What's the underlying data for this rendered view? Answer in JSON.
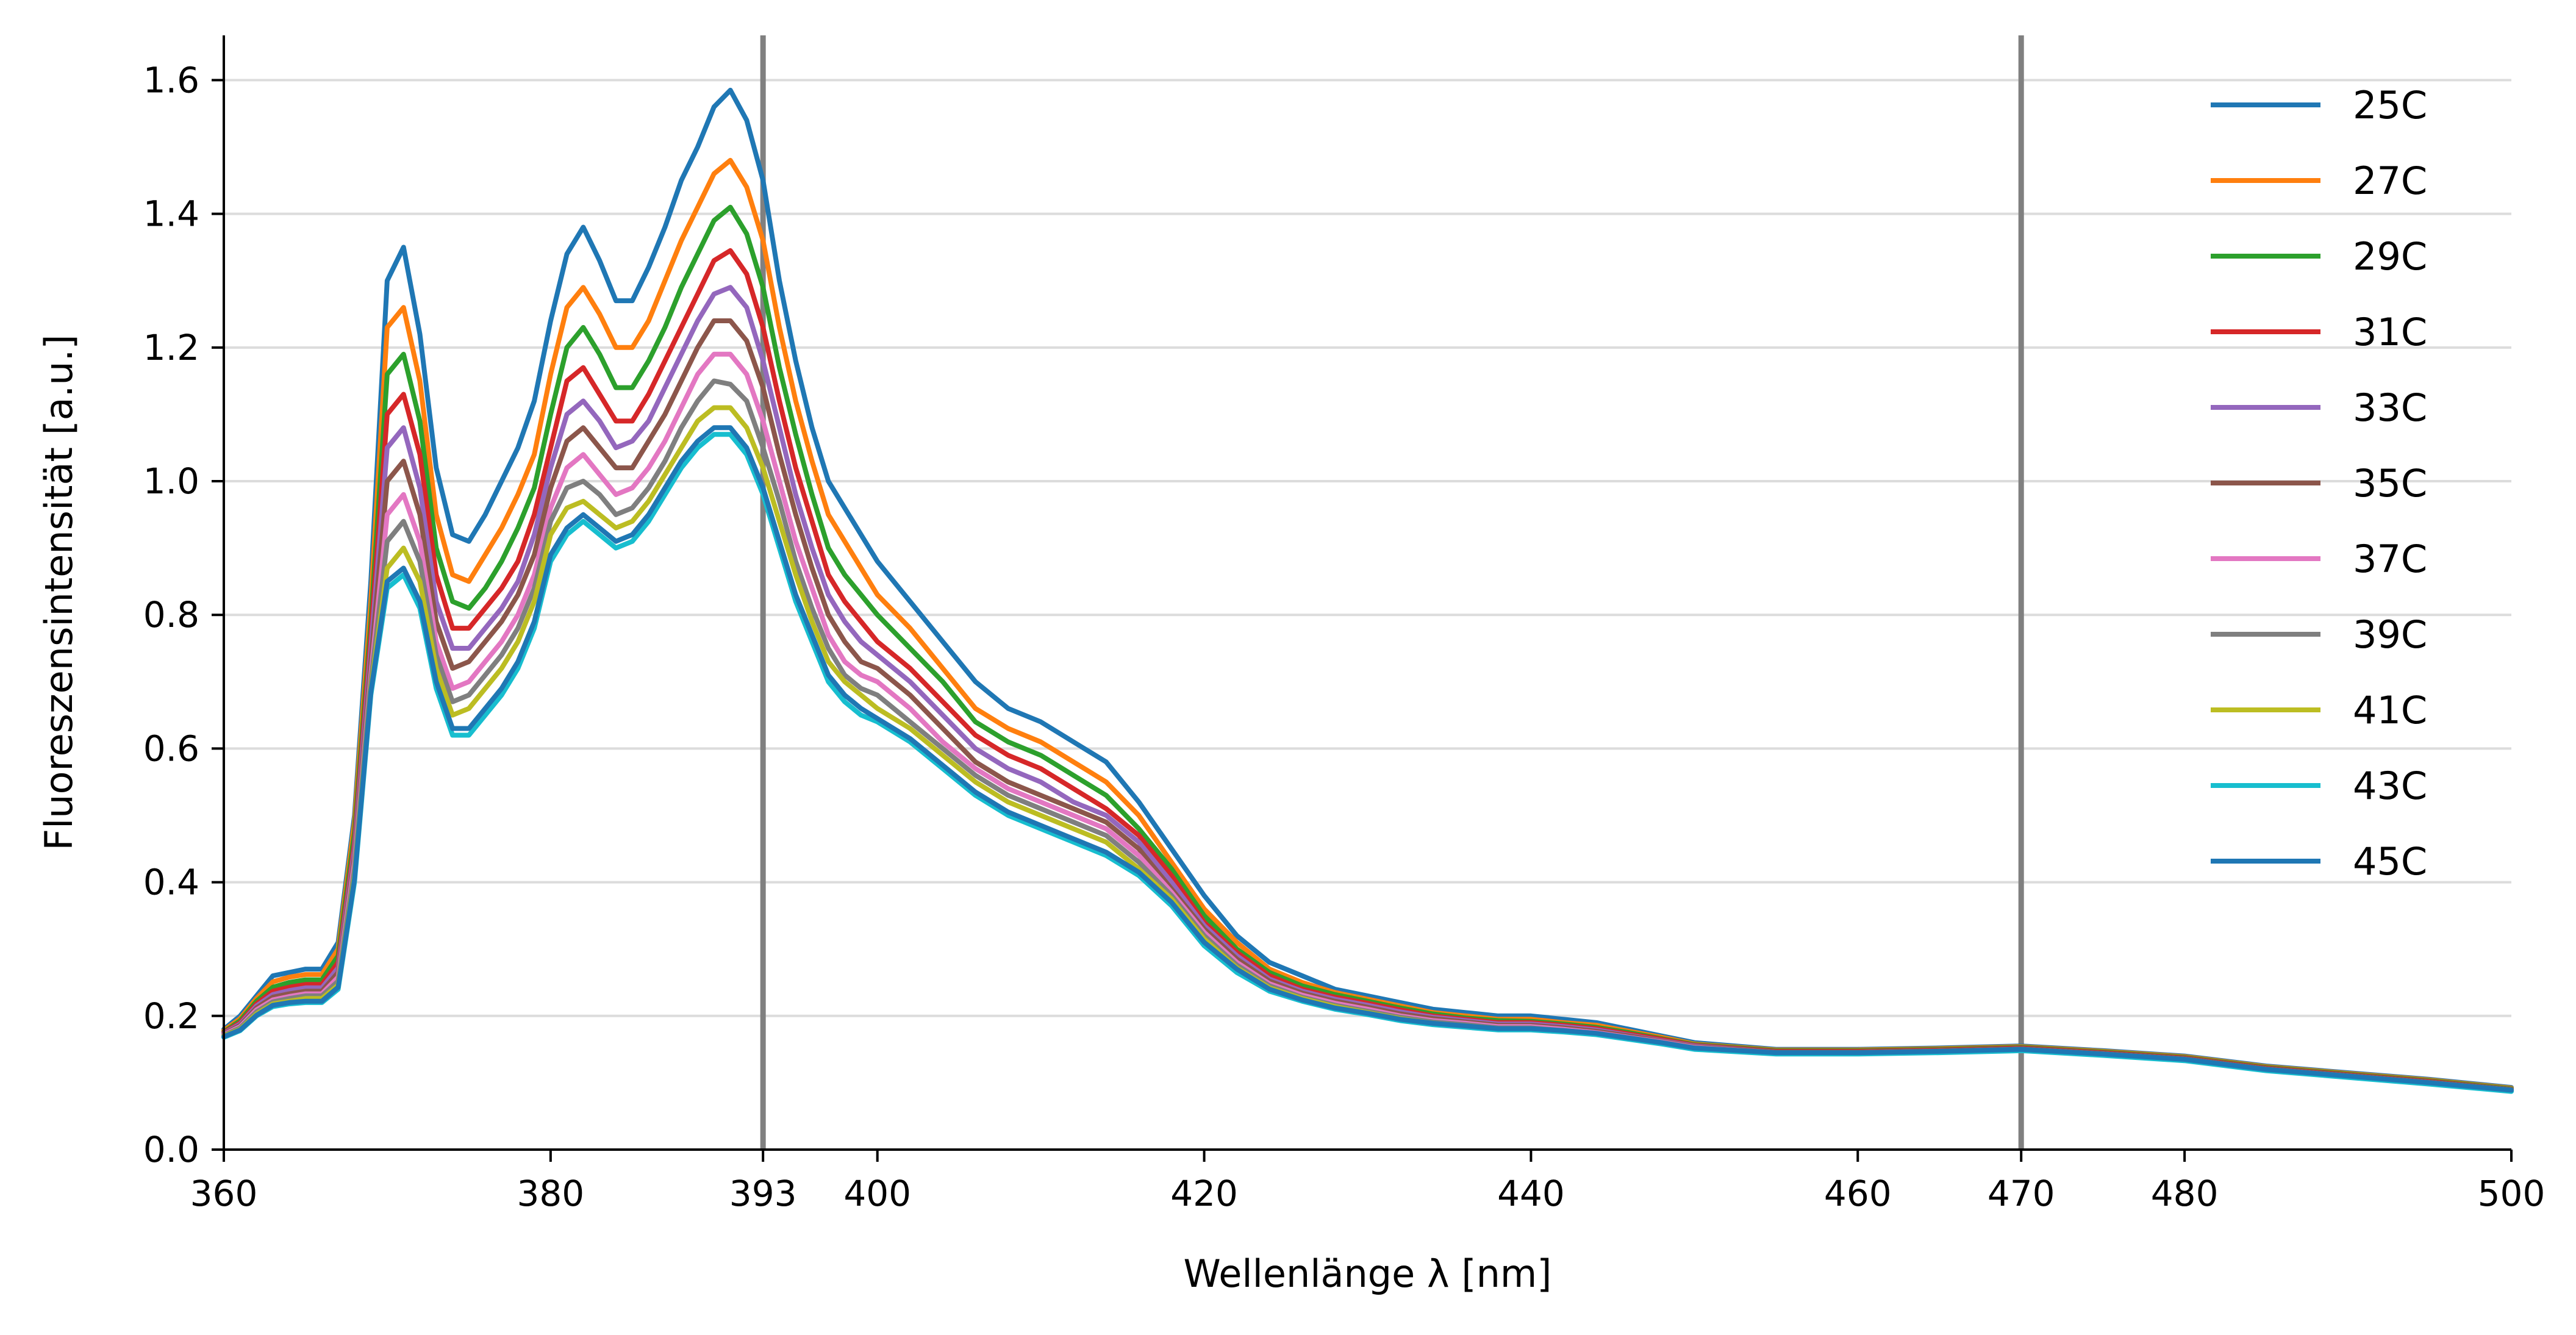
{
  "chart_data": {
    "type": "line",
    "xlabel": "Wellenlänge λ [nm]",
    "ylabel": "Fluoreszensintensität [a.u.]",
    "xlim": [
      360,
      500
    ],
    "ylim": [
      0.0,
      1.667
    ],
    "xticks": [
      360,
      380,
      393,
      400,
      420,
      440,
      460,
      470,
      480,
      500
    ],
    "yticks": [
      0.0,
      0.2,
      0.4,
      0.6,
      0.8,
      1.0,
      1.2,
      1.4,
      1.6
    ],
    "xtick_labels": [
      "360",
      "380",
      "393",
      "400",
      "420",
      "440",
      "460",
      "470",
      "480",
      "500"
    ],
    "ytick_labels": [
      "0.0",
      "0.2",
      "0.4",
      "0.6",
      "0.8",
      "1.0",
      "1.2",
      "1.4",
      "1.6"
    ],
    "grid": "horizontal",
    "legend_position": "top-right",
    "vlines": [
      393,
      470
    ],
    "vline_color": "#808080",
    "x": [
      360,
      361,
      362,
      363,
      364,
      365,
      366,
      367,
      368,
      369,
      370,
      371,
      372,
      373,
      374,
      375,
      376,
      377,
      378,
      379,
      380,
      381,
      382,
      383,
      384,
      385,
      386,
      387,
      388,
      389,
      390,
      391,
      392,
      393,
      394,
      395,
      396,
      397,
      398,
      399,
      400,
      402,
      404,
      406,
      408,
      410,
      412,
      414,
      416,
      418,
      420,
      422,
      424,
      426,
      428,
      430,
      432,
      434,
      436,
      438,
      440,
      442,
      444,
      446,
      448,
      450,
      455,
      460,
      465,
      470,
      475,
      480,
      485,
      490,
      495,
      500
    ],
    "series": [
      {
        "name": "25C",
        "color": "#1f77b4",
        "values": [
          0.18,
          0.2,
          0.23,
          0.26,
          0.265,
          0.27,
          0.27,
          0.31,
          0.5,
          0.85,
          1.3,
          1.35,
          1.22,
          1.02,
          0.92,
          0.91,
          0.95,
          1.0,
          1.05,
          1.12,
          1.24,
          1.34,
          1.38,
          1.33,
          1.27,
          1.27,
          1.32,
          1.38,
          1.45,
          1.5,
          1.56,
          1.585,
          1.54,
          1.45,
          1.3,
          1.18,
          1.08,
          1.0,
          0.96,
          0.92,
          0.88,
          0.82,
          0.76,
          0.7,
          0.66,
          0.64,
          0.61,
          0.58,
          0.52,
          0.45,
          0.38,
          0.32,
          0.28,
          0.26,
          0.24,
          0.23,
          0.22,
          0.21,
          0.205,
          0.2,
          0.2,
          0.195,
          0.19,
          0.18,
          0.17,
          0.16,
          0.15,
          0.15,
          0.152,
          0.155,
          0.148,
          0.14,
          0.125,
          0.115,
          0.105,
          0.093
        ]
      },
      {
        "name": "27C",
        "color": "#ff7f0e",
        "values": [
          0.178,
          0.196,
          0.226,
          0.251,
          0.258,
          0.262,
          0.262,
          0.3,
          0.49,
          0.82,
          1.23,
          1.26,
          1.15,
          0.95,
          0.86,
          0.85,
          0.89,
          0.93,
          0.98,
          1.04,
          1.16,
          1.26,
          1.29,
          1.25,
          1.2,
          1.2,
          1.24,
          1.3,
          1.36,
          1.41,
          1.46,
          1.48,
          1.44,
          1.36,
          1.23,
          1.12,
          1.03,
          0.95,
          0.91,
          0.87,
          0.83,
          0.78,
          0.72,
          0.66,
          0.63,
          0.61,
          0.58,
          0.55,
          0.5,
          0.43,
          0.36,
          0.31,
          0.27,
          0.25,
          0.235,
          0.225,
          0.215,
          0.205,
          0.2,
          0.195,
          0.195,
          0.19,
          0.186,
          0.177,
          0.168,
          0.158,
          0.149,
          0.149,
          0.151,
          0.154,
          0.147,
          0.139,
          0.124,
          0.114,
          0.104,
          0.092
        ]
      },
      {
        "name": "29C",
        "color": "#2ca02c",
        "values": [
          0.176,
          0.193,
          0.222,
          0.243,
          0.25,
          0.254,
          0.254,
          0.29,
          0.475,
          0.79,
          1.16,
          1.19,
          1.09,
          0.9,
          0.82,
          0.81,
          0.84,
          0.88,
          0.93,
          0.99,
          1.1,
          1.2,
          1.23,
          1.19,
          1.14,
          1.14,
          1.18,
          1.23,
          1.29,
          1.34,
          1.39,
          1.41,
          1.37,
          1.29,
          1.17,
          1.07,
          0.98,
          0.9,
          0.86,
          0.83,
          0.8,
          0.75,
          0.7,
          0.64,
          0.61,
          0.59,
          0.56,
          0.53,
          0.48,
          0.42,
          0.35,
          0.3,
          0.265,
          0.245,
          0.232,
          0.222,
          0.212,
          0.203,
          0.197,
          0.193,
          0.192,
          0.188,
          0.183,
          0.175,
          0.166,
          0.157,
          0.148,
          0.148,
          0.15,
          0.153,
          0.146,
          0.138,
          0.123,
          0.113,
          0.103,
          0.091
        ]
      },
      {
        "name": "31C",
        "color": "#d62728",
        "values": [
          0.175,
          0.19,
          0.218,
          0.237,
          0.243,
          0.247,
          0.247,
          0.28,
          0.46,
          0.77,
          1.1,
          1.13,
          1.04,
          0.86,
          0.78,
          0.78,
          0.81,
          0.84,
          0.88,
          0.95,
          1.05,
          1.15,
          1.17,
          1.13,
          1.09,
          1.09,
          1.13,
          1.18,
          1.23,
          1.28,
          1.33,
          1.345,
          1.31,
          1.23,
          1.12,
          1.02,
          0.94,
          0.86,
          0.82,
          0.79,
          0.76,
          0.72,
          0.67,
          0.62,
          0.59,
          0.57,
          0.54,
          0.51,
          0.47,
          0.41,
          0.34,
          0.295,
          0.26,
          0.24,
          0.228,
          0.219,
          0.209,
          0.2,
          0.195,
          0.19,
          0.19,
          0.186,
          0.181,
          0.173,
          0.165,
          0.156,
          0.147,
          0.147,
          0.149,
          0.152,
          0.145,
          0.137,
          0.122,
          0.112,
          0.102,
          0.09
        ]
      },
      {
        "name": "33C",
        "color": "#9467bd",
        "values": [
          0.174,
          0.188,
          0.215,
          0.232,
          0.238,
          0.242,
          0.242,
          0.272,
          0.45,
          0.75,
          1.05,
          1.08,
          0.99,
          0.82,
          0.75,
          0.75,
          0.78,
          0.81,
          0.85,
          0.92,
          1.02,
          1.1,
          1.12,
          1.09,
          1.05,
          1.06,
          1.09,
          1.14,
          1.19,
          1.24,
          1.28,
          1.29,
          1.26,
          1.18,
          1.08,
          0.98,
          0.9,
          0.83,
          0.79,
          0.76,
          0.74,
          0.7,
          0.65,
          0.6,
          0.57,
          0.55,
          0.52,
          0.5,
          0.46,
          0.4,
          0.335,
          0.29,
          0.255,
          0.237,
          0.225,
          0.216,
          0.206,
          0.198,
          0.193,
          0.188,
          0.188,
          0.184,
          0.179,
          0.171,
          0.163,
          0.155,
          0.146,
          0.146,
          0.148,
          0.151,
          0.144,
          0.136,
          0.121,
          0.111,
          0.101,
          0.09
        ]
      },
      {
        "name": "35C",
        "color": "#8c564b",
        "values": [
          0.173,
          0.186,
          0.212,
          0.228,
          0.233,
          0.237,
          0.237,
          0.265,
          0.44,
          0.73,
          1.0,
          1.03,
          0.95,
          0.79,
          0.72,
          0.73,
          0.76,
          0.79,
          0.83,
          0.89,
          0.99,
          1.06,
          1.08,
          1.05,
          1.02,
          1.02,
          1.06,
          1.1,
          1.15,
          1.2,
          1.24,
          1.24,
          1.21,
          1.14,
          1.04,
          0.95,
          0.87,
          0.8,
          0.76,
          0.73,
          0.72,
          0.68,
          0.63,
          0.58,
          0.55,
          0.53,
          0.51,
          0.49,
          0.45,
          0.39,
          0.33,
          0.285,
          0.252,
          0.234,
          0.222,
          0.213,
          0.203,
          0.196,
          0.191,
          0.186,
          0.186,
          0.182,
          0.177,
          0.17,
          0.162,
          0.154,
          0.146,
          0.146,
          0.148,
          0.151,
          0.144,
          0.136,
          0.121,
          0.111,
          0.101,
          0.09
        ]
      },
      {
        "name": "37C",
        "color": "#e377c2",
        "values": [
          0.172,
          0.184,
          0.209,
          0.224,
          0.229,
          0.233,
          0.233,
          0.258,
          0.43,
          0.71,
          0.95,
          0.98,
          0.91,
          0.76,
          0.69,
          0.7,
          0.73,
          0.76,
          0.8,
          0.86,
          0.96,
          1.02,
          1.04,
          1.01,
          0.98,
          0.99,
          1.02,
          1.06,
          1.11,
          1.16,
          1.19,
          1.19,
          1.16,
          1.09,
          1.0,
          0.91,
          0.84,
          0.77,
          0.73,
          0.71,
          0.7,
          0.66,
          0.61,
          0.57,
          0.54,
          0.52,
          0.5,
          0.48,
          0.44,
          0.385,
          0.325,
          0.28,
          0.248,
          0.231,
          0.219,
          0.21,
          0.2,
          0.193,
          0.189,
          0.184,
          0.184,
          0.18,
          0.175,
          0.168,
          0.161,
          0.153,
          0.145,
          0.145,
          0.147,
          0.15,
          0.143,
          0.135,
          0.12,
          0.11,
          0.1,
          0.089
        ]
      },
      {
        "name": "39C",
        "color": "#7f7f7f",
        "values": [
          0.171,
          0.182,
          0.206,
          0.221,
          0.226,
          0.23,
          0.23,
          0.252,
          0.42,
          0.7,
          0.91,
          0.94,
          0.88,
          0.74,
          0.67,
          0.68,
          0.71,
          0.74,
          0.78,
          0.84,
          0.94,
          0.99,
          1.0,
          0.98,
          0.95,
          0.96,
          0.99,
          1.03,
          1.08,
          1.12,
          1.15,
          1.145,
          1.12,
          1.05,
          0.97,
          0.88,
          0.81,
          0.75,
          0.71,
          0.69,
          0.68,
          0.64,
          0.6,
          0.56,
          0.53,
          0.51,
          0.49,
          0.47,
          0.43,
          0.38,
          0.32,
          0.276,
          0.245,
          0.228,
          0.216,
          0.207,
          0.198,
          0.191,
          0.187,
          0.182,
          0.182,
          0.178,
          0.174,
          0.167,
          0.16,
          0.152,
          0.145,
          0.145,
          0.147,
          0.15,
          0.143,
          0.135,
          0.12,
          0.11,
          0.1,
          0.089
        ]
      },
      {
        "name": "41C",
        "color": "#bcbd22",
        "values": [
          0.17,
          0.18,
          0.203,
          0.218,
          0.222,
          0.226,
          0.226,
          0.246,
          0.41,
          0.69,
          0.87,
          0.9,
          0.85,
          0.72,
          0.65,
          0.66,
          0.69,
          0.72,
          0.76,
          0.82,
          0.92,
          0.96,
          0.97,
          0.95,
          0.93,
          0.94,
          0.97,
          1.01,
          1.05,
          1.09,
          1.11,
          1.11,
          1.08,
          1.02,
          0.94,
          0.86,
          0.79,
          0.73,
          0.7,
          0.68,
          0.66,
          0.63,
          0.59,
          0.55,
          0.52,
          0.5,
          0.48,
          0.46,
          0.42,
          0.375,
          0.315,
          0.272,
          0.242,
          0.226,
          0.214,
          0.205,
          0.196,
          0.189,
          0.185,
          0.181,
          0.181,
          0.177,
          0.173,
          0.166,
          0.159,
          0.151,
          0.144,
          0.144,
          0.146,
          0.149,
          0.142,
          0.134,
          0.119,
          0.109,
          0.099,
          0.088
        ]
      },
      {
        "name": "43C",
        "color": "#17becf",
        "values": [
          0.168,
          0.178,
          0.2,
          0.214,
          0.218,
          0.22,
          0.22,
          0.24,
          0.4,
          0.68,
          0.84,
          0.86,
          0.81,
          0.69,
          0.62,
          0.62,
          0.65,
          0.68,
          0.72,
          0.78,
          0.88,
          0.92,
          0.94,
          0.92,
          0.9,
          0.91,
          0.94,
          0.98,
          1.02,
          1.05,
          1.07,
          1.07,
          1.04,
          0.98,
          0.9,
          0.82,
          0.76,
          0.7,
          0.67,
          0.65,
          0.64,
          0.61,
          0.57,
          0.53,
          0.5,
          0.48,
          0.46,
          0.44,
          0.41,
          0.365,
          0.305,
          0.265,
          0.237,
          0.222,
          0.21,
          0.202,
          0.193,
          0.187,
          0.183,
          0.179,
          0.179,
          0.176,
          0.172,
          0.165,
          0.158,
          0.15,
          0.143,
          0.143,
          0.145,
          0.148,
          0.141,
          0.133,
          0.118,
          0.108,
          0.098,
          0.087
        ]
      },
      {
        "name": "45C",
        "color": "#1f77b4",
        "values": [
          0.169,
          0.179,
          0.201,
          0.216,
          0.22,
          0.222,
          0.222,
          0.243,
          0.405,
          0.685,
          0.85,
          0.87,
          0.82,
          0.7,
          0.63,
          0.63,
          0.66,
          0.69,
          0.73,
          0.79,
          0.89,
          0.93,
          0.95,
          0.93,
          0.91,
          0.92,
          0.95,
          0.99,
          1.03,
          1.06,
          1.08,
          1.08,
          1.05,
          0.99,
          0.91,
          0.83,
          0.77,
          0.71,
          0.68,
          0.66,
          0.645,
          0.615,
          0.575,
          0.535,
          0.505,
          0.485,
          0.465,
          0.445,
          0.415,
          0.37,
          0.31,
          0.27,
          0.24,
          0.224,
          0.212,
          0.204,
          0.195,
          0.189,
          0.185,
          0.181,
          0.181,
          0.178,
          0.174,
          0.167,
          0.16,
          0.152,
          0.145,
          0.145,
          0.147,
          0.15,
          0.143,
          0.135,
          0.12,
          0.11,
          0.1,
          0.089
        ]
      }
    ]
  }
}
